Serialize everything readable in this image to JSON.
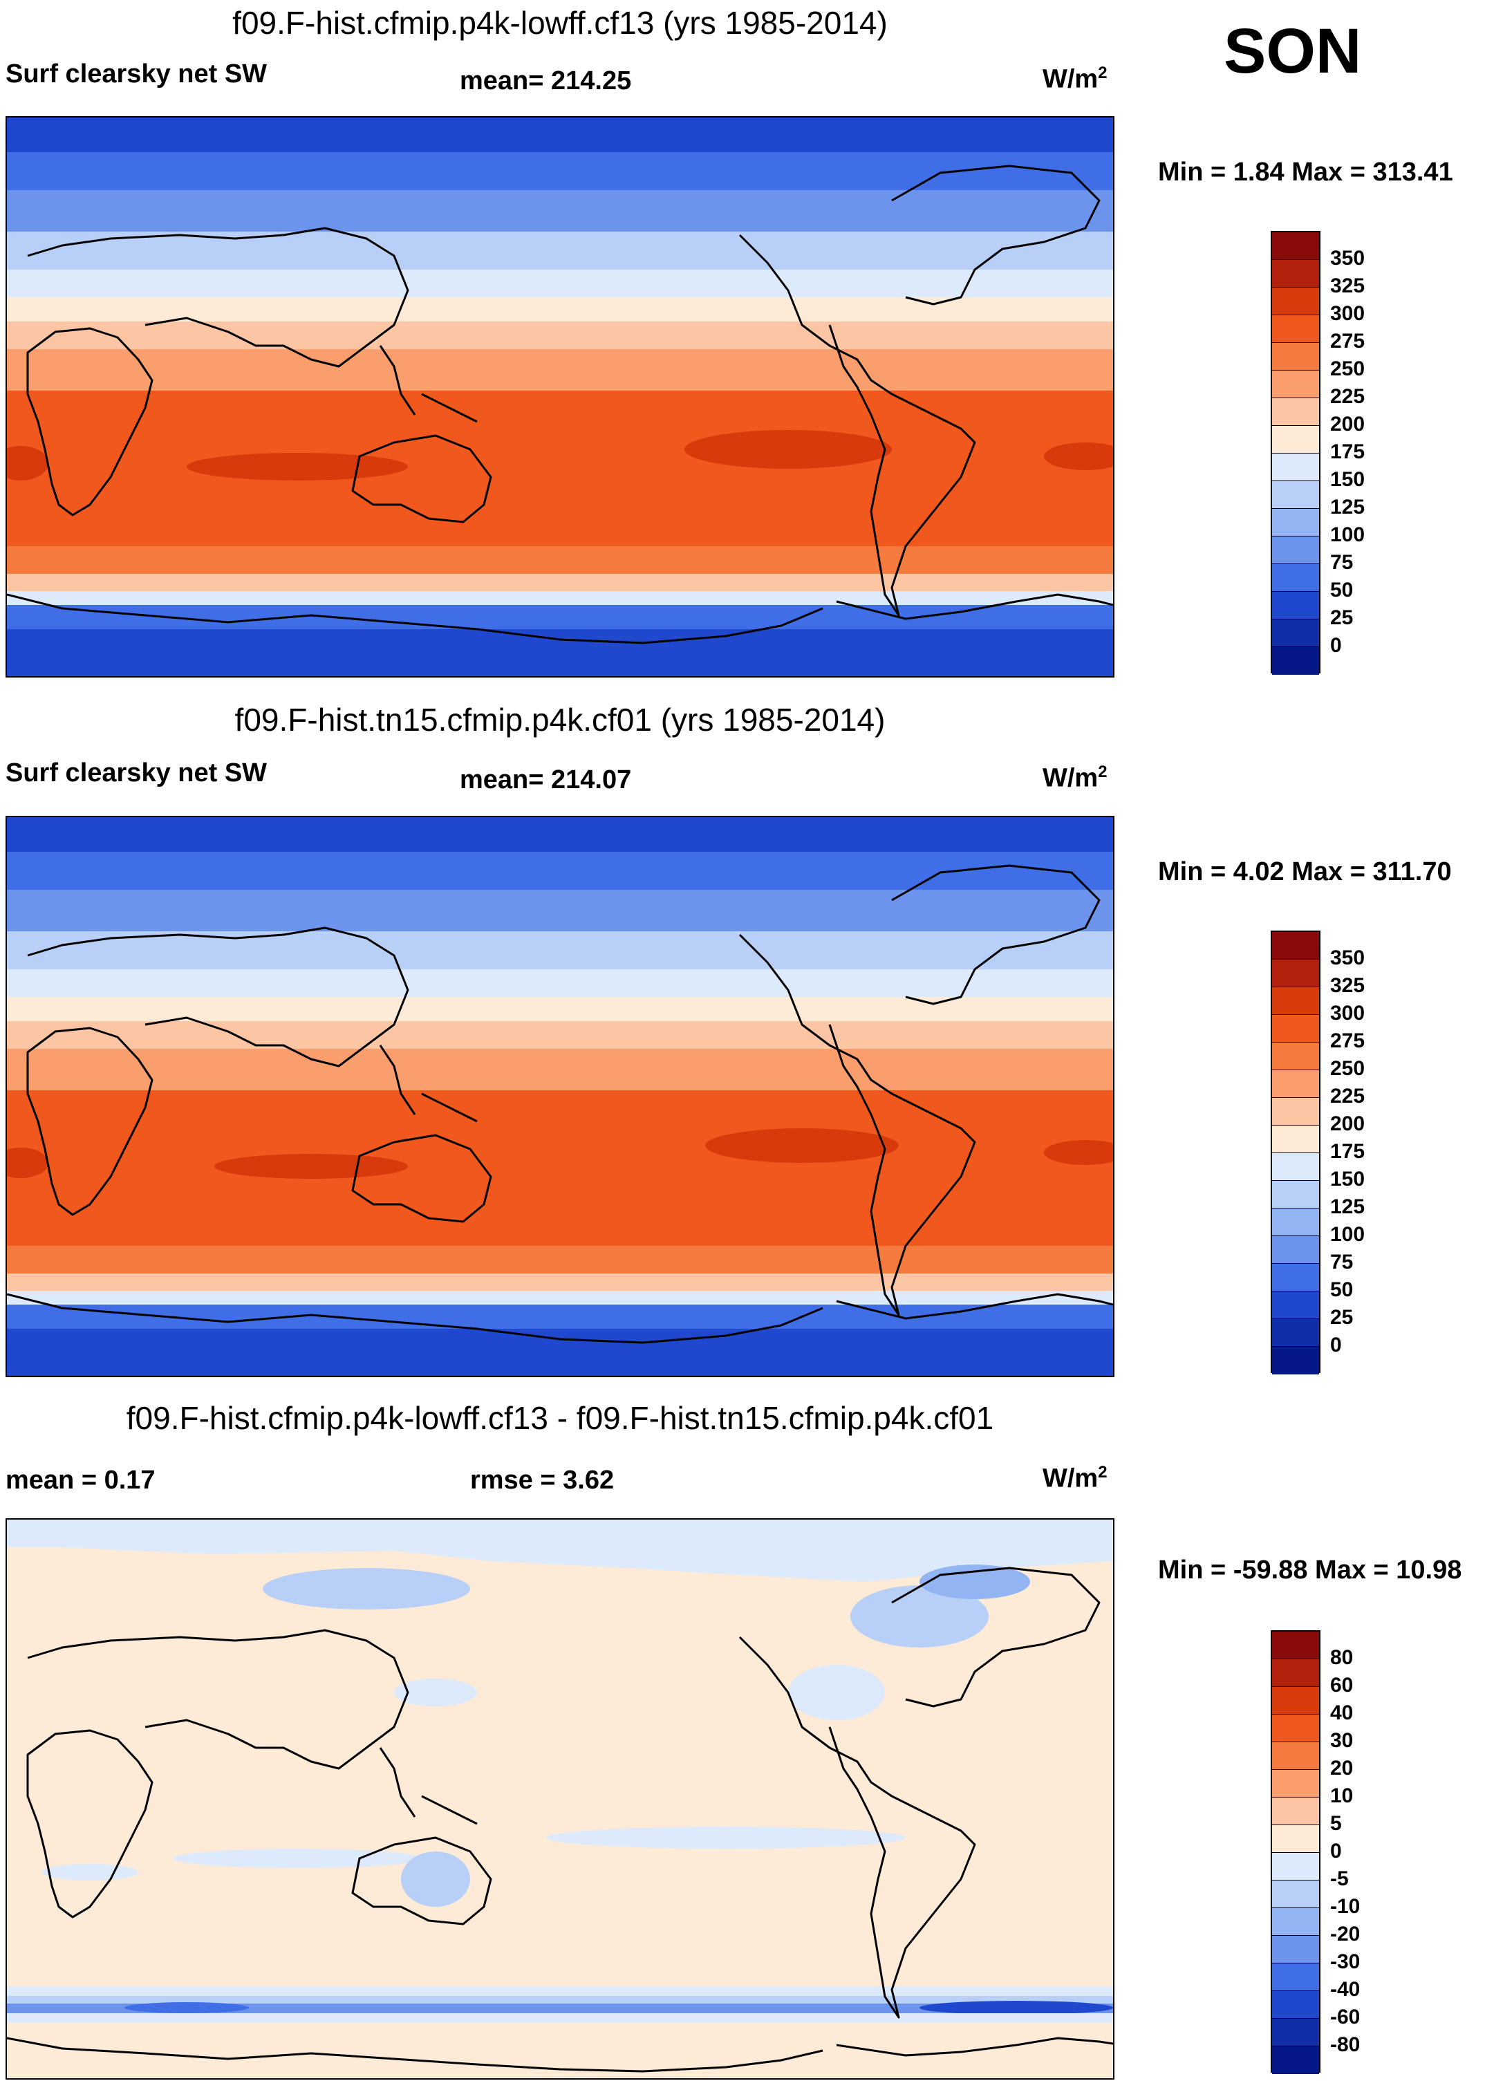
{
  "season": "SON",
  "panels": [
    {
      "title": "f09.F-hist.cfmip.p4k-lowff.cf13 (yrs 1985-2014)",
      "left_label": "Surf clearsky net SW",
      "mid_label": "mean= 214.25",
      "units": "W/m",
      "units_sup": "2",
      "minmax": "Min =   1.84 Max = 313.41",
      "colorbar": {
        "labels": [
          "350",
          "325",
          "300",
          "275",
          "250",
          "225",
          "200",
          "175",
          "150",
          "125",
          "100",
          "75",
          "50",
          "25",
          "0"
        ],
        "colors": [
          "#8a0a0a",
          "#b3200c",
          "#d83a0c",
          "#f0581e",
          "#f57a3e",
          "#fa9e6e",
          "#fcc5a3",
          "#fdebd8",
          "#ddeafb",
          "#b8d0f7",
          "#92b4f2",
          "#6c94ec",
          "#3f6ee6",
          "#1f48cf",
          "#0f2ea8",
          "#061888"
        ]
      }
    },
    {
      "title": "f09.F-hist.tn15.cfmip.p4k.cf01 (yrs 1985-2014)",
      "left_label": "Surf clearsky net SW",
      "mid_label": "mean= 214.07",
      "units": "W/m",
      "units_sup": "2",
      "minmax": "Min =   4.02 Max = 311.70",
      "colorbar": {
        "labels": [
          "350",
          "325",
          "300",
          "275",
          "250",
          "225",
          "200",
          "175",
          "150",
          "125",
          "100",
          "75",
          "50",
          "25",
          "0"
        ],
        "colors": [
          "#8a0a0a",
          "#b3200c",
          "#d83a0c",
          "#f0581e",
          "#f57a3e",
          "#fa9e6e",
          "#fcc5a3",
          "#fdebd8",
          "#ddeafb",
          "#b8d0f7",
          "#92b4f2",
          "#6c94ec",
          "#3f6ee6",
          "#1f48cf",
          "#0f2ea8",
          "#061888"
        ]
      }
    },
    {
      "title": "f09.F-hist.cfmip.p4k-lowff.cf13 - f09.F-hist.tn15.cfmip.p4k.cf01",
      "left_label": "mean =   0.17",
      "mid_label": "rmse =   3.62",
      "units": "W/m",
      "units_sup": "2",
      "minmax": "Min = -59.88 Max =  10.98",
      "colorbar": {
        "labels": [
          "80",
          "60",
          "40",
          "30",
          "20",
          "10",
          "5",
          "0",
          "-5",
          "-10",
          "-20",
          "-30",
          "-40",
          "-60",
          "-80"
        ],
        "colors": [
          "#8a0a0a",
          "#b3200c",
          "#d83a0c",
          "#f0581e",
          "#f57a3e",
          "#fa9e6e",
          "#fcc5a3",
          "#fdebd8",
          "#ddeafb",
          "#b8d0f7",
          "#92b4f2",
          "#6c94ec",
          "#3f6ee6",
          "#1f48cf",
          "#0f2ea8",
          "#061888"
        ]
      }
    }
  ]
}
